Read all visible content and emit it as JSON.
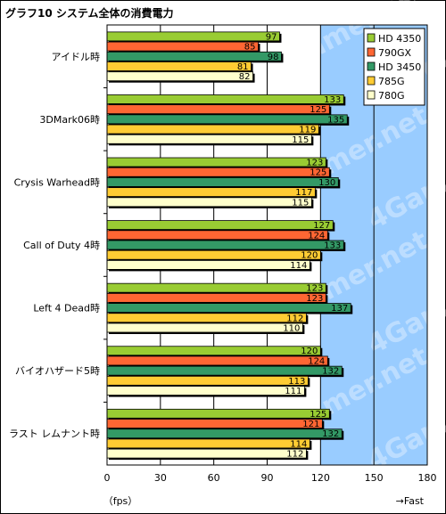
{
  "chart_data": {
    "type": "bar",
    "orientation": "horizontal",
    "title": "グラフ10 システム全体の消費電力",
    "xlabel": "（fps）",
    "x_note": "→Fast",
    "xlim": [
      0,
      180
    ],
    "xticks": [
      0,
      30,
      60,
      90,
      120,
      150,
      180
    ],
    "grid": true,
    "legend_position": "top-right",
    "categories": [
      "アイドル時",
      "3DMark06時",
      "Crysis Warhead時",
      "Call of Duty 4時",
      "Left 4 Dead時",
      "バイオハザード5時",
      "ラスト レムナント時"
    ],
    "series": [
      {
        "name": "HD 4350",
        "color": "#99cc33",
        "values": [
          97,
          133,
          123,
          127,
          123,
          120,
          125
        ]
      },
      {
        "name": "790GX",
        "color": "#ff6633",
        "values": [
          85,
          125,
          125,
          124,
          123,
          124,
          121
        ]
      },
      {
        "name": "HD 3450",
        "color": "#339966",
        "values": [
          98,
          135,
          130,
          133,
          137,
          132,
          132
        ]
      },
      {
        "name": "785G",
        "color": "#ffcc33",
        "values": [
          81,
          119,
          117,
          120,
          112,
          113,
          114
        ]
      },
      {
        "name": "780G",
        "color": "#ffffcc",
        "values": [
          82,
          115,
          115,
          114,
          110,
          111,
          112
        ]
      }
    ],
    "watermark": "4Gamer.net",
    "colors": {
      "plot_bg": "#ffffff",
      "highlight_bg": "#99ccff",
      "grid": "#000000"
    }
  }
}
